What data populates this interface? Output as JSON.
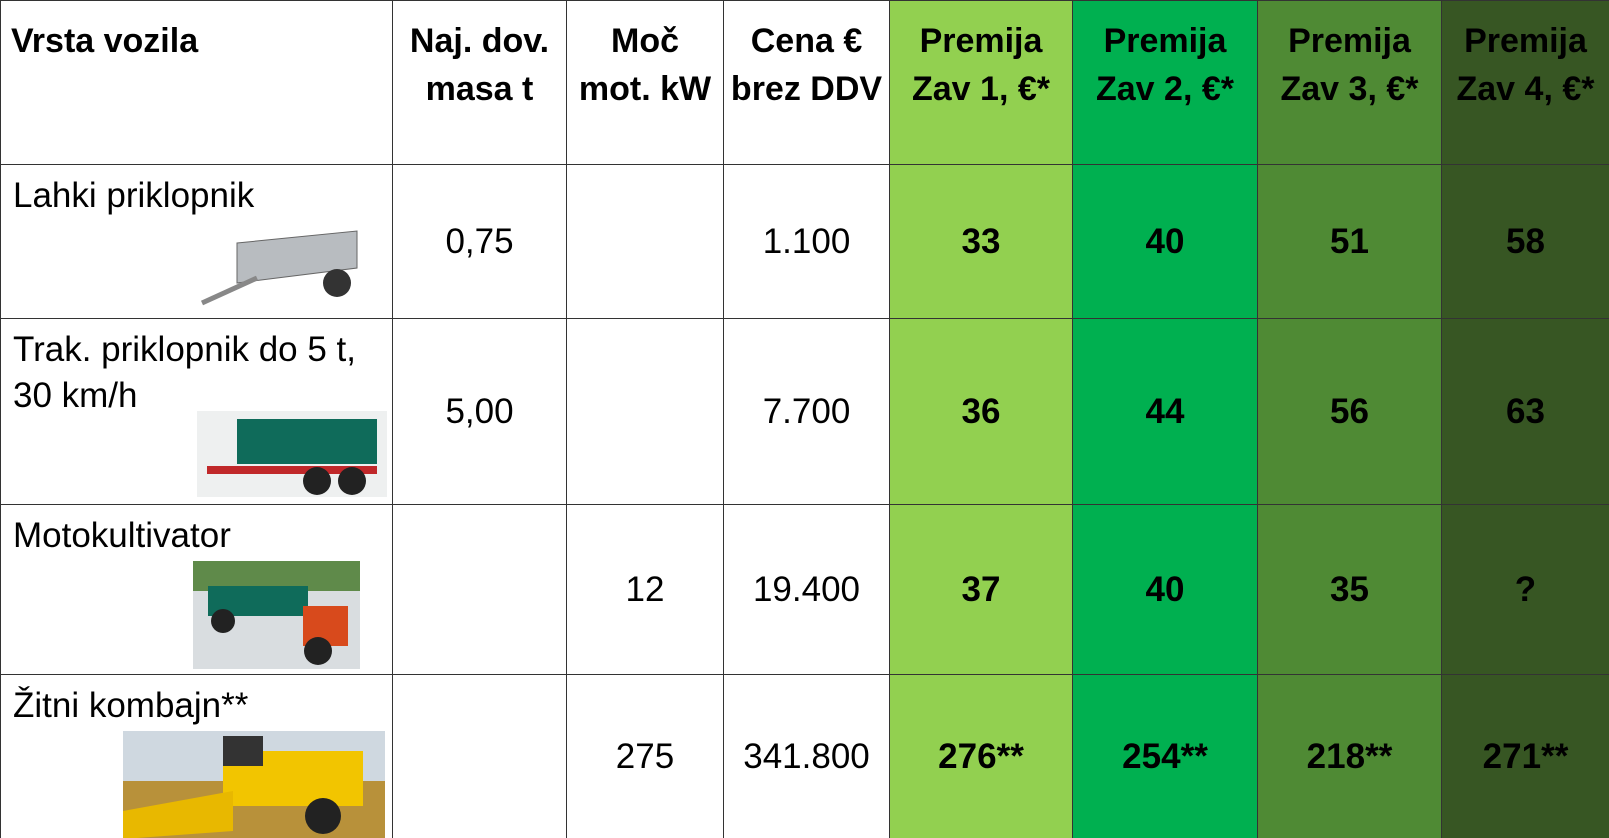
{
  "table": {
    "header": [
      "Vrsta vozila",
      "Naj. dov. masa t",
      "Moč mot. kW",
      "Cena € brez DDV",
      "Premija Zav 1, €*",
      "Premija Zav 2, €*",
      "Premija Zav 3, €*",
      "Premija Zav 4, €*"
    ],
    "rows": [
      {
        "vehicle": "Lahki priklopnik",
        "mass": "0,75",
        "price": "1.100",
        "premiums": [
          "33",
          "40",
          "51",
          "58"
        ]
      },
      {
        "vehicle": "Trak. priklopnik do 5 t, 30 km/h",
        "mass": "5,00",
        "price": "7.700",
        "premiums": [
          "36",
          "44",
          "56",
          "63"
        ]
      },
      {
        "vehicle": "Motokultivator",
        "power": "12",
        "price": "19.400",
        "premiums": [
          "37",
          "40",
          "35",
          "?"
        ]
      },
      {
        "vehicle": "Žitni kombajn**",
        "power": "275",
        "price": "341.800",
        "premiums": [
          "276**",
          "254**",
          "218**",
          "271**"
        ]
      }
    ]
  }
}
